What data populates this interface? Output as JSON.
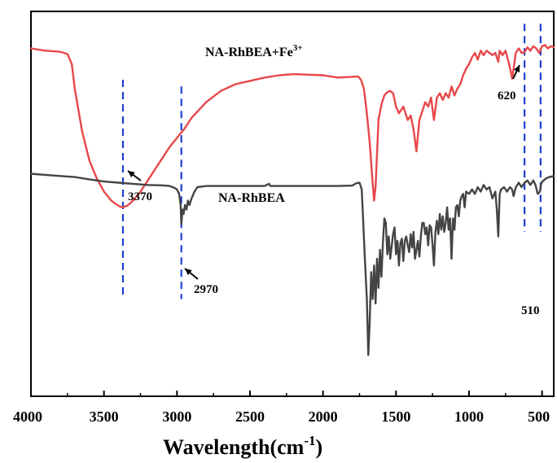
{
  "chart_data": {
    "type": "line",
    "title": "",
    "xlabel": "Wavelength(cm",
    "xlabel_sup": "-1",
    "xlabel_close": ")",
    "ylabel": "",
    "xlim": [
      4000,
      420
    ],
    "x_reversed": true,
    "x_ticks": [
      4000,
      3500,
      3000,
      2500,
      2000,
      1500,
      1000,
      500
    ],
    "x_tick_labels": [
      "4000",
      "3500",
      "3000",
      "2500",
      "2000",
      "1500",
      "1000",
      "500"
    ],
    "y_ticks_shown": false,
    "grid": false,
    "series": [
      {
        "name": "NA-RhBEA+Fe",
        "name_sup": "3+",
        "color": "#e8474a",
        "points": [
          [
            4000,
            92
          ],
          [
            3900,
            91
          ],
          [
            3800,
            90.5
          ],
          [
            3750,
            89.5
          ],
          [
            3720,
            85
          ],
          [
            3700,
            74
          ],
          [
            3650,
            55
          ],
          [
            3600,
            42
          ],
          [
            3550,
            34
          ],
          [
            3500,
            28
          ],
          [
            3450,
            24
          ],
          [
            3420,
            22.5
          ],
          [
            3390,
            21.3
          ],
          [
            3370,
            21
          ],
          [
            3340,
            21.8
          ],
          [
            3300,
            24
          ],
          [
            3250,
            28
          ],
          [
            3200,
            33
          ],
          [
            3150,
            38
          ],
          [
            3100,
            43
          ],
          [
            3050,
            48
          ],
          [
            3000,
            52
          ],
          [
            2950,
            56
          ],
          [
            2900,
            61
          ],
          [
            2800,
            68
          ],
          [
            2700,
            73
          ],
          [
            2600,
            76
          ],
          [
            2500,
            77.5
          ],
          [
            2400,
            79
          ],
          [
            2300,
            80
          ],
          [
            2200,
            80.5
          ],
          [
            2000,
            80
          ],
          [
            1900,
            79
          ],
          [
            1800,
            79.3
          ],
          [
            1760,
            79.5
          ],
          [
            1740,
            78
          ],
          [
            1720,
            74
          ],
          [
            1700,
            63
          ],
          [
            1680,
            50
          ],
          [
            1660,
            32
          ],
          [
            1650,
            24
          ],
          [
            1640,
            30
          ],
          [
            1620,
            60
          ],
          [
            1600,
            67
          ],
          [
            1580,
            71
          ],
          [
            1560,
            72.5
          ],
          [
            1540,
            73
          ],
          [
            1520,
            72
          ],
          [
            1500,
            66
          ],
          [
            1480,
            63
          ],
          [
            1450,
            66
          ],
          [
            1420,
            60
          ],
          [
            1400,
            62
          ],
          [
            1380,
            56
          ],
          [
            1360,
            46
          ],
          [
            1340,
            60
          ],
          [
            1320,
            64
          ],
          [
            1300,
            68
          ],
          [
            1280,
            66
          ],
          [
            1260,
            70
          ],
          [
            1240,
            60
          ],
          [
            1220,
            70
          ],
          [
            1200,
            72
          ],
          [
            1180,
            69
          ],
          [
            1160,
            72
          ],
          [
            1140,
            70
          ],
          [
            1120,
            75
          ],
          [
            1100,
            71
          ],
          [
            1080,
            74
          ],
          [
            1060,
            76
          ],
          [
            1040,
            80
          ],
          [
            1020,
            83
          ],
          [
            1000,
            85
          ],
          [
            980,
            88
          ],
          [
            960,
            90
          ],
          [
            940,
            87
          ],
          [
            920,
            91
          ],
          [
            900,
            89
          ],
          [
            880,
            91
          ],
          [
            860,
            90
          ],
          [
            840,
            89
          ],
          [
            820,
            90
          ],
          [
            800,
            86
          ],
          [
            790,
            91
          ],
          [
            770,
            89
          ],
          [
            750,
            91
          ],
          [
            730,
            86
          ],
          [
            715,
            82
          ],
          [
            705,
            78.5
          ],
          [
            695,
            83
          ],
          [
            680,
            90
          ],
          [
            660,
            92
          ],
          [
            640,
            90
          ],
          [
            620,
            90.3
          ],
          [
            600,
            92.5
          ],
          [
            580,
            91
          ],
          [
            560,
            93
          ],
          [
            540,
            92
          ],
          [
            520,
            90
          ],
          [
            500,
            93
          ],
          [
            480,
            93.5
          ],
          [
            460,
            92
          ],
          [
            440,
            93
          ],
          [
            420,
            92.5
          ]
        ]
      },
      {
        "name": "NA-RhBEA",
        "name_sup": "",
        "color": "#444444",
        "points": [
          [
            4000,
            36
          ],
          [
            3900,
            35.5
          ],
          [
            3800,
            35
          ],
          [
            3700,
            34.5
          ],
          [
            3600,
            33.5
          ],
          [
            3500,
            32.5
          ],
          [
            3400,
            32
          ],
          [
            3300,
            31.5
          ],
          [
            3200,
            31
          ],
          [
            3100,
            30.8
          ],
          [
            3050,
            30.5
          ],
          [
            3020,
            29.8
          ],
          [
            3000,
            29
          ],
          [
            2985,
            27
          ],
          [
            2975,
            22
          ],
          [
            2970,
            13.5
          ],
          [
            2962,
            20
          ],
          [
            2955,
            18
          ],
          [
            2945,
            22
          ],
          [
            2935,
            20
          ],
          [
            2925,
            24
          ],
          [
            2915,
            22
          ],
          [
            2900,
            25
          ],
          [
            2880,
            28
          ],
          [
            2860,
            30
          ],
          [
            2800,
            30.5
          ],
          [
            2700,
            30.5
          ],
          [
            2600,
            30.5
          ],
          [
            2500,
            30.5
          ],
          [
            2400,
            30.5
          ],
          [
            2370,
            31.5
          ],
          [
            2360,
            30.5
          ],
          [
            2300,
            30.5
          ],
          [
            2200,
            30.5
          ],
          [
            2100,
            30.5
          ],
          [
            2000,
            30.5
          ],
          [
            1900,
            30.5
          ],
          [
            1800,
            30.7
          ],
          [
            1770,
            31.8
          ],
          [
            1750,
            32
          ],
          [
            1735,
            29
          ],
          [
            1725,
            15
          ],
          [
            1715,
            0
          ],
          [
            1700,
            -20
          ],
          [
            1690,
            -45
          ],
          [
            1680,
            -30
          ],
          [
            1670,
            -8
          ],
          [
            1660,
            -20
          ],
          [
            1650,
            -5
          ],
          [
            1640,
            -22
          ],
          [
            1630,
            -2
          ],
          [
            1620,
            -15
          ],
          [
            1610,
            2
          ],
          [
            1600,
            -10
          ],
          [
            1590,
            5
          ],
          [
            1580,
            16
          ],
          [
            1570,
            14
          ],
          [
            1560,
            0
          ],
          [
            1550,
            8
          ],
          [
            1540,
            -2
          ],
          [
            1520,
            9
          ],
          [
            1510,
            12
          ],
          [
            1500,
            0
          ],
          [
            1490,
            6
          ],
          [
            1480,
            -5
          ],
          [
            1470,
            5
          ],
          [
            1460,
            7
          ],
          [
            1450,
            -3
          ],
          [
            1440,
            6
          ],
          [
            1430,
            8
          ],
          [
            1420,
            4
          ],
          [
            1410,
            1
          ],
          [
            1400,
            9
          ],
          [
            1390,
            3
          ],
          [
            1380,
            10
          ],
          [
            1370,
            -2
          ],
          [
            1360,
            2
          ],
          [
            1350,
            6
          ],
          [
            1340,
            -1
          ],
          [
            1330,
            8
          ],
          [
            1320,
            14
          ],
          [
            1310,
            14
          ],
          [
            1300,
            9
          ],
          [
            1290,
            12
          ],
          [
            1280,
            4
          ],
          [
            1270,
            13
          ],
          [
            1260,
            12
          ],
          [
            1250,
            4
          ],
          [
            1240,
            -5
          ],
          [
            1230,
            10
          ],
          [
            1220,
            15
          ],
          [
            1210,
            9
          ],
          [
            1200,
            18
          ],
          [
            1190,
            11
          ],
          [
            1180,
            17
          ],
          [
            1170,
            10
          ],
          [
            1160,
            14
          ],
          [
            1150,
            21
          ],
          [
            1140,
            11
          ],
          [
            1130,
            16
          ],
          [
            1120,
            -2
          ],
          [
            1110,
            16
          ],
          [
            1100,
            11
          ],
          [
            1090,
            21
          ],
          [
            1080,
            22
          ],
          [
            1070,
            17
          ],
          [
            1060,
            24
          ],
          [
            1050,
            26
          ],
          [
            1040,
            27
          ],
          [
            1030,
            21
          ],
          [
            1020,
            28
          ],
          [
            1000,
            27
          ],
          [
            980,
            29
          ],
          [
            960,
            27
          ],
          [
            940,
            30
          ],
          [
            920,
            28
          ],
          [
            900,
            31
          ],
          [
            880,
            29
          ],
          [
            860,
            30
          ],
          [
            840,
            25
          ],
          [
            820,
            28
          ],
          [
            810,
            20
          ],
          [
            800,
            8
          ],
          [
            790,
            27
          ],
          [
            780,
            29
          ],
          [
            760,
            30
          ],
          [
            740,
            28
          ],
          [
            720,
            30
          ],
          [
            705,
            29
          ],
          [
            695,
            26
          ],
          [
            680,
            30
          ],
          [
            660,
            32
          ],
          [
            640,
            30
          ],
          [
            620,
            32
          ],
          [
            600,
            33
          ],
          [
            580,
            31
          ],
          [
            560,
            33
          ],
          [
            545,
            31
          ],
          [
            530,
            27
          ],
          [
            515,
            28
          ],
          [
            505,
            32
          ],
          [
            490,
            33
          ],
          [
            470,
            34
          ],
          [
            450,
            34.5
          ],
          [
            420,
            35
          ]
        ]
      }
    ],
    "vlines": [
      {
        "x": 3370,
        "y_range": [
          -20,
          78
        ],
        "color": "#1f3fd1"
      },
      {
        "x": 2970,
        "y_range": [
          -20,
          75
        ],
        "color": "#1f3fd1"
      },
      {
        "x": 620,
        "y_range": [
          10,
          103
        ],
        "color": "#1f3fd1"
      },
      {
        "x": 510,
        "y_range": [
          10,
          103
        ],
        "color": "#1f3fd1"
      }
    ],
    "annotations": [
      {
        "text": "3370",
        "arrow_to": [
          3370,
          21
        ]
      },
      {
        "text": "2970",
        "arrow_to": [
          2970,
          13.5
        ]
      },
      {
        "text": "620",
        "arrow_to": [
          620,
          90.3
        ]
      },
      {
        "text": "510",
        "arrow_to": null
      }
    ]
  }
}
